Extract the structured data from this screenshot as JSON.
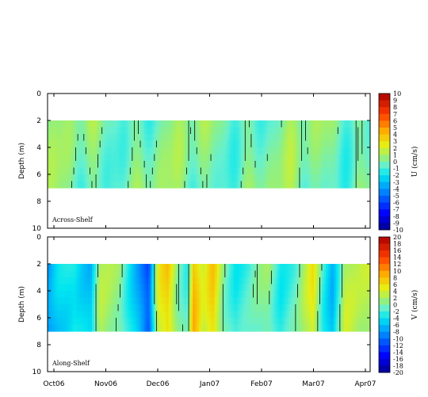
{
  "chart_data": [
    {
      "type": "heatmap",
      "panel": "top",
      "annotation": "Across-Shelf",
      "ylabel": "Depth (m)",
      "ylim": [
        10,
        0
      ],
      "yticks": [
        0,
        2,
        4,
        6,
        8,
        10
      ],
      "data_depth_range": [
        2,
        7
      ],
      "xticks": [
        "Oct06",
        "Nov06",
        "Dec06",
        "Jan07",
        "Feb07",
        "Mar07",
        "Apr07"
      ],
      "colorbar": {
        "label": "U (cm/s)",
        "min": -10,
        "max": 10,
        "tick_labels": [
          "10",
          "9",
          "8",
          "7",
          "6",
          "5",
          "4",
          "3",
          "2",
          "1",
          "0",
          "-1",
          "-2",
          "-3",
          "-4",
          "-5",
          "-6",
          "-7",
          "-8",
          "-9",
          "-10"
        ]
      },
      "field_level_range": [
        -2,
        2
      ],
      "contour_level": 0
    },
    {
      "type": "heatmap",
      "panel": "bottom",
      "annotation": "Along-Shelf",
      "ylabel": "Depth (m)",
      "ylim": [
        10,
        0
      ],
      "yticks": [
        0,
        2,
        4,
        6,
        8,
        10
      ],
      "data_depth_range": [
        2,
        7
      ],
      "xticks": [
        "Oct06",
        "Nov06",
        "Dec06",
        "Jan07",
        "Feb07",
        "Mar07",
        "Apr07"
      ],
      "colorbar": {
        "label": "V (cm/s)",
        "min": -20,
        "max": 20,
        "tick_labels": [
          "20",
          "18",
          "16",
          "14",
          "12",
          "10",
          "8",
          "6",
          "4",
          "2",
          "0",
          "-2",
          "-4",
          "-6",
          "-8",
          "-10",
          "-12",
          "-14",
          "-16",
          "-18",
          "-20"
        ]
      },
      "field_level_range": [
        -12,
        8
      ],
      "contour_level": 0
    }
  ]
}
